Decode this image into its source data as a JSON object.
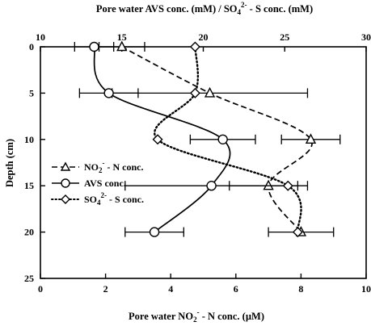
{
  "chart_data": {
    "type": "line",
    "top_xlabel": {
      "pre": "Pore water AVS conc. (mM) / SO",
      "sub": "4",
      "sup": "2-",
      "post": " - S conc. (mM)"
    },
    "bottom_xlabel": {
      "pre": "Pore water NO",
      "sub": "2",
      "sup": "-",
      "post": " - N conc. (µM)"
    },
    "ylabel": "Depth (cm)",
    "bottom_x_range": [
      0,
      10
    ],
    "bottom_x_ticks": [
      "0",
      "2",
      "4",
      "6",
      "8",
      "10"
    ],
    "top_x_range": [
      10,
      30
    ],
    "top_x_ticks": [
      "10",
      "15",
      "20",
      "25",
      "30"
    ],
    "y_range": [
      0,
      25
    ],
    "y_inverted": true,
    "y_ticks": [
      "0",
      "5",
      "10",
      "15",
      "20",
      "25"
    ],
    "legend_position": "left",
    "series": [
      {
        "name": {
          "pre": "NO",
          "sub": "2",
          "sup": "-",
          "post": " - N conc."
        },
        "axis": "bottom",
        "marker": "triangle",
        "line_style": "dashed",
        "points": [
          {
            "x": 2.5,
            "y": 0,
            "err": 0.7
          },
          {
            "x": 5.2,
            "y": 5,
            "err": 3.0
          },
          {
            "x": 8.3,
            "y": 10,
            "err": 0.9
          },
          {
            "x": 7.0,
            "y": 15,
            "err": 1.2
          },
          {
            "x": 8.0,
            "y": 20,
            "err": 1.0
          }
        ]
      },
      {
        "name": {
          "pre": "AVS conc.",
          "sub": "",
          "sup": "",
          "post": ""
        },
        "axis": "top",
        "marker": "circle",
        "line_style": "solid",
        "points": [
          {
            "x": 13.3,
            "y": 0,
            "err": 1.2
          },
          {
            "x": 14.2,
            "y": 5,
            "err": 1.8
          },
          {
            "x": 21.2,
            "y": 10,
            "err": 2.0
          },
          {
            "x": 20.5,
            "y": 15,
            "err": 5.3
          },
          {
            "x": 17.0,
            "y": 20,
            "err": 1.8
          }
        ]
      },
      {
        "name": {
          "pre": "SO",
          "sub": "4",
          "sup": "2-",
          "post": " - S conc."
        },
        "axis": "top",
        "marker": "diamond",
        "line_style": "dotted",
        "points": [
          {
            "x": 19.5,
            "y": 0,
            "err": 0
          },
          {
            "x": 19.5,
            "y": 5,
            "err": 0
          },
          {
            "x": 17.2,
            "y": 10,
            "err": 0
          },
          {
            "x": 25.2,
            "y": 15,
            "err": 0
          },
          {
            "x": 25.8,
            "y": 20,
            "err": 0
          }
        ]
      }
    ]
  }
}
